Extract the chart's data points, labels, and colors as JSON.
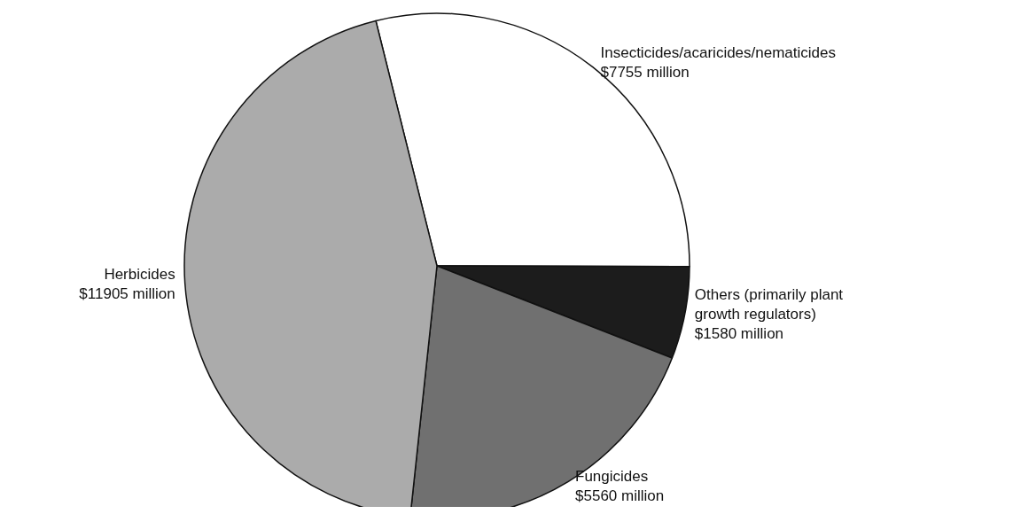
{
  "chart_data": {
    "type": "pie",
    "categories": [
      "Insecticides/acaricides/nematicides",
      "Others (primarily plant growth regulators)",
      "Fungicides",
      "Herbicides"
    ],
    "values": [
      7755,
      1580,
      5560,
      11905
    ],
    "value_labels": [
      "$7755 million",
      "$1580 million",
      "$5560 million",
      "$11905 million"
    ],
    "colors": [
      "#ffffff",
      "#1c1c1c",
      "#707070",
      "#ababab"
    ],
    "legend": false
  }
}
